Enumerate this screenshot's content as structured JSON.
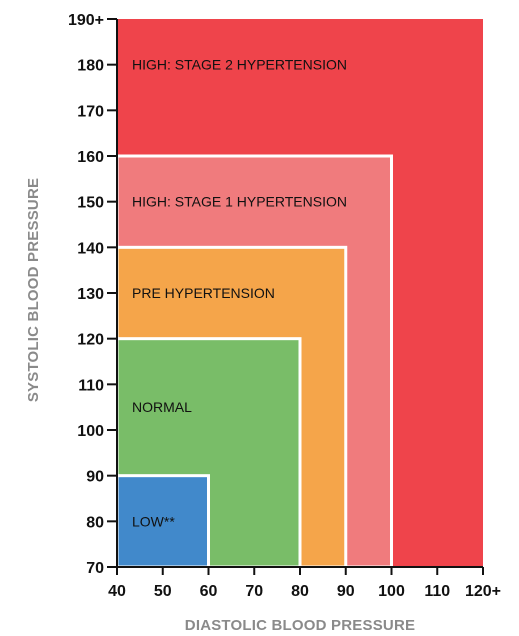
{
  "chart_data": {
    "type": "area",
    "xlabel": "DIASTOLIC BLOOD PRESSURE",
    "ylabel": "SYSTOLIC BLOOD PRESSURE",
    "xlim": [
      40,
      120
    ],
    "ylim": [
      70,
      190
    ],
    "x_ticks": [
      {
        "value": 40,
        "label": "40"
      },
      {
        "value": 50,
        "label": "50"
      },
      {
        "value": 60,
        "label": "60"
      },
      {
        "value": 70,
        "label": "70"
      },
      {
        "value": 80,
        "label": "80"
      },
      {
        "value": 90,
        "label": "90"
      },
      {
        "value": 100,
        "label": "100"
      },
      {
        "value": 110,
        "label": "110"
      },
      {
        "value": 120,
        "label": "120+"
      }
    ],
    "y_ticks": [
      {
        "value": 70,
        "label": "70"
      },
      {
        "value": 80,
        "label": "80"
      },
      {
        "value": 90,
        "label": "90"
      },
      {
        "value": 100,
        "label": "100"
      },
      {
        "value": 110,
        "label": "110"
      },
      {
        "value": 120,
        "label": "120"
      },
      {
        "value": 130,
        "label": "130"
      },
      {
        "value": 140,
        "label": "140"
      },
      {
        "value": 150,
        "label": "150"
      },
      {
        "value": 160,
        "label": "160"
      },
      {
        "value": 170,
        "label": "170"
      },
      {
        "value": 180,
        "label": "180"
      },
      {
        "value": 190,
        "label": "190+"
      }
    ],
    "zones": [
      {
        "name": "HIGH: STAGE 2 HYPERTENSION",
        "diastolic_max": 120,
        "systolic_max": 190,
        "color": "#ef444b",
        "label_systolic": 180
      },
      {
        "name": "HIGH: STAGE 1 HYPERTENSION",
        "diastolic_max": 100,
        "systolic_max": 160,
        "color": "#f07b7d",
        "label_systolic": 150
      },
      {
        "name": "PRE HYPERTENSION",
        "diastolic_max": 90,
        "systolic_max": 140,
        "color": "#f5a54a",
        "label_systolic": 130
      },
      {
        "name": "NORMAL",
        "diastolic_max": 80,
        "systolic_max": 120,
        "color": "#79bd68",
        "label_systolic": 105
      },
      {
        "name": "LOW**",
        "diastolic_max": 60,
        "systolic_max": 90,
        "color": "#4189cb",
        "label_systolic": 80
      }
    ]
  }
}
